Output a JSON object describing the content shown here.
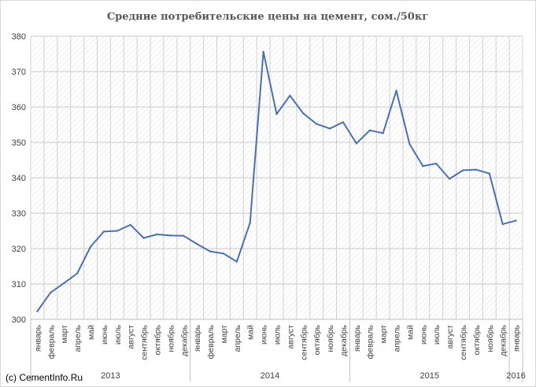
{
  "chart_data": {
    "type": "line",
    "title": "Средние потребительские цены на цемент, сом./50кг",
    "ylim": [
      300,
      380
    ],
    "yticks": [
      "300",
      "310",
      "320",
      "330",
      "340",
      "350",
      "360",
      "370",
      "380"
    ],
    "grid": true,
    "categories": [
      "январь",
      "февраль",
      "март",
      "апрель",
      "май",
      "июнь",
      "июль",
      "август",
      "сентябрь",
      "октябрь",
      "ноябрь",
      "декабрь",
      "январь",
      "февраль",
      "март",
      "апрель",
      "май",
      "июнь",
      "июль",
      "август",
      "сентябрь",
      "октябрь",
      "ноябрь",
      "декабрь",
      "январь",
      "февраль",
      "март",
      "апрель",
      "май",
      "июнь",
      "июль",
      "август",
      "сентябрь",
      "октябрь",
      "ноябрь",
      "декабрь",
      "январь"
    ],
    "years": [
      {
        "label": "2013",
        "count": 12
      },
      {
        "label": "2014",
        "count": 12
      },
      {
        "label": "2015",
        "count": 12
      },
      {
        "label": "2016",
        "count": 1
      }
    ],
    "series": [
      {
        "color": "#4a70b0",
        "values": [
          302.3,
          307.6,
          310.2,
          313.0,
          320.5,
          324.8,
          325.0,
          326.7,
          323.0,
          324.0,
          323.7,
          323.6,
          321.3,
          319.2,
          318.6,
          316.3,
          327.3,
          375.6,
          358.0,
          363.2,
          358.2,
          355.2,
          353.9,
          355.7,
          349.7,
          353.4,
          352.6,
          364.6,
          349.5,
          343.3,
          344.0,
          339.7,
          342.1,
          342.3,
          341.2,
          326.9,
          327.9
        ]
      }
    ]
  },
  "credit": "(c) CementInfo.Ru"
}
